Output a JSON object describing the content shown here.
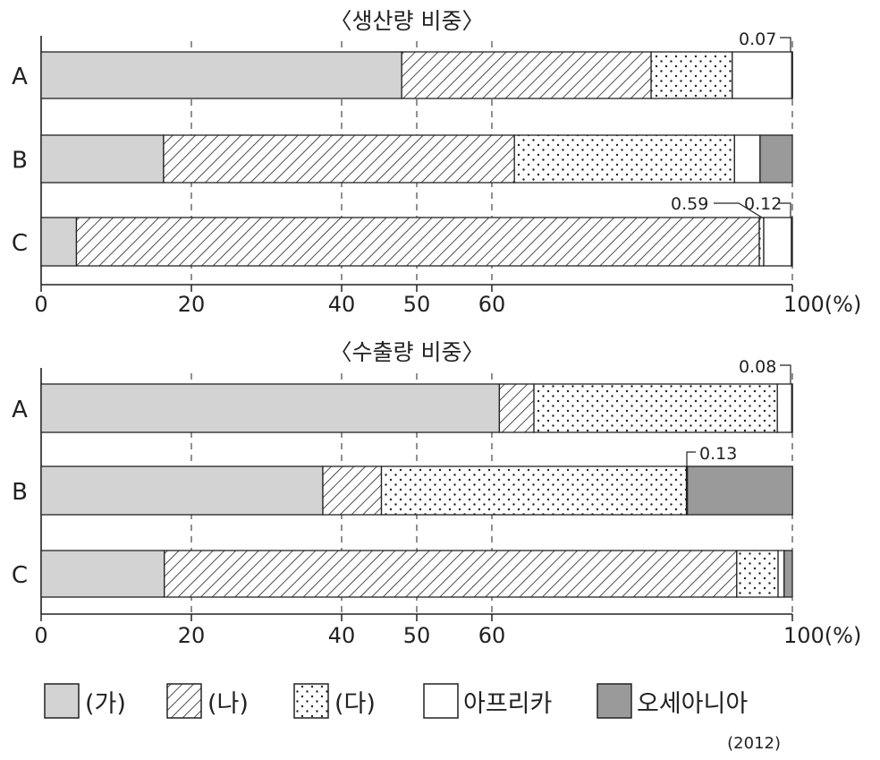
{
  "chart_data": [
    {
      "type": "bar",
      "orientation": "horizontal",
      "stacked": true,
      "title": "〈생산량 비중〉",
      "categories": [
        "A",
        "B",
        "C"
      ],
      "series": [
        {
          "name": "(가)",
          "values": [
            48,
            16.3,
            4.7
          ]
        },
        {
          "name": "(나)",
          "values": [
            33.2,
            46.7,
            90.9
          ]
        },
        {
          "name": "(다)",
          "values": [
            10.8,
            29.3,
            0.59
          ]
        },
        {
          "name": "아프리카",
          "values": [
            7.93,
            3.4,
            3.69
          ]
        },
        {
          "name": "오세아니아",
          "values": [
            0.07,
            4.3,
            0.12
          ]
        }
      ],
      "xticks": [
        0,
        20,
        40,
        50,
        60,
        100
      ],
      "xtick_labels": [
        "0",
        "20",
        "40",
        "50",
        "60",
        "100(%)"
      ],
      "xlim": [
        0,
        100
      ],
      "annotations": [
        {
          "text": "0.07",
          "category": "A",
          "series": "오세아니아"
        },
        {
          "text": "0.59",
          "category": "C",
          "series": "(다)"
        },
        {
          "text": "0.12",
          "category": "C",
          "series": "오세아니아"
        }
      ]
    },
    {
      "type": "bar",
      "orientation": "horizontal",
      "stacked": true,
      "title": "〈수출량 비중〉",
      "categories": [
        "A",
        "B",
        "C"
      ],
      "series": [
        {
          "name": "(가)",
          "values": [
            61,
            37.5,
            16.4
          ]
        },
        {
          "name": "(나)",
          "values": [
            4.6,
            7.8,
            76.2
          ]
        },
        {
          "name": "(다)",
          "values": [
            32.4,
            40.6,
            5.5
          ]
        },
        {
          "name": "아프리카",
          "values": [
            1.92,
            0.13,
            0.8
          ]
        },
        {
          "name": "오세아니아",
          "values": [
            0.08,
            14,
            1.1
          ]
        }
      ],
      "xticks": [
        0,
        20,
        40,
        50,
        60,
        100
      ],
      "xtick_labels": [
        "0",
        "20",
        "40",
        "50",
        "60",
        "100(%)"
      ],
      "xlim": [
        0,
        100
      ],
      "annotations": [
        {
          "text": "0.08",
          "category": "A",
          "series": "오세아니아"
        },
        {
          "text": "0.13",
          "category": "B",
          "series": "아프리카"
        }
      ]
    }
  ],
  "legend": [
    {
      "label": "(가)",
      "pattern": "gray"
    },
    {
      "label": "(나)",
      "pattern": "hatch"
    },
    {
      "label": "(다)",
      "pattern": "dots"
    },
    {
      "label": "아프리카",
      "pattern": "white"
    },
    {
      "label": "오세아니아",
      "pattern": "darkgray"
    }
  ],
  "year_note": "(2012)",
  "colors": {
    "gray": "#d3d3d3",
    "darkgray": "#9a9a9a",
    "stroke": "#222222"
  }
}
